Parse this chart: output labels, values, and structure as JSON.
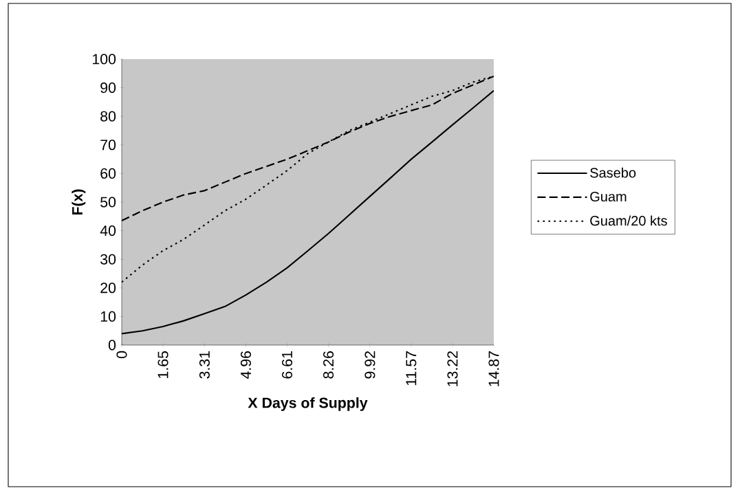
{
  "chart_data": {
    "type": "line",
    "xlabel": "X Days of Supply",
    "ylabel": "F(x)",
    "xlim": [
      0,
      14.87
    ],
    "ylim": [
      0,
      100
    ],
    "xticks": [
      0,
      1.65,
      3.31,
      4.96,
      6.61,
      8.26,
      9.92,
      11.57,
      13.22,
      14.87
    ],
    "yticks": [
      0,
      10,
      20,
      30,
      40,
      50,
      60,
      70,
      80,
      90,
      100
    ],
    "x": [
      0,
      0.83,
      1.65,
      2.48,
      3.31,
      4.13,
      4.96,
      5.79,
      6.61,
      7.44,
      8.26,
      9.09,
      9.92,
      10.75,
      11.57,
      12.4,
      13.22,
      14.05,
      14.87
    ],
    "series": [
      {
        "name": "Sasebo",
        "color": "#000000",
        "line_style": "solid",
        "values": [
          4,
          5,
          6.5,
          8.5,
          11,
          13.5,
          17.5,
          22,
          27,
          33,
          39,
          45.5,
          52,
          58.5,
          65,
          71,
          77,
          83,
          89
        ]
      },
      {
        "name": "Guam",
        "color": "#000000",
        "line_style": "dashed",
        "values": [
          43.5,
          47,
          50,
          52.5,
          54,
          57,
          60,
          62.5,
          65,
          68,
          71,
          74.5,
          77.5,
          80,
          82,
          84,
          88,
          91,
          94
        ]
      },
      {
        "name": "Guam/20 kts",
        "color": "#000000",
        "line_style": "dotted",
        "values": [
          22,
          28,
          33,
          37,
          42,
          47,
          51,
          56,
          61,
          67,
          71,
          75,
          78,
          81,
          84,
          87,
          89,
          92,
          94
        ]
      }
    ],
    "grid": false,
    "legend": "right",
    "marker": "none"
  }
}
